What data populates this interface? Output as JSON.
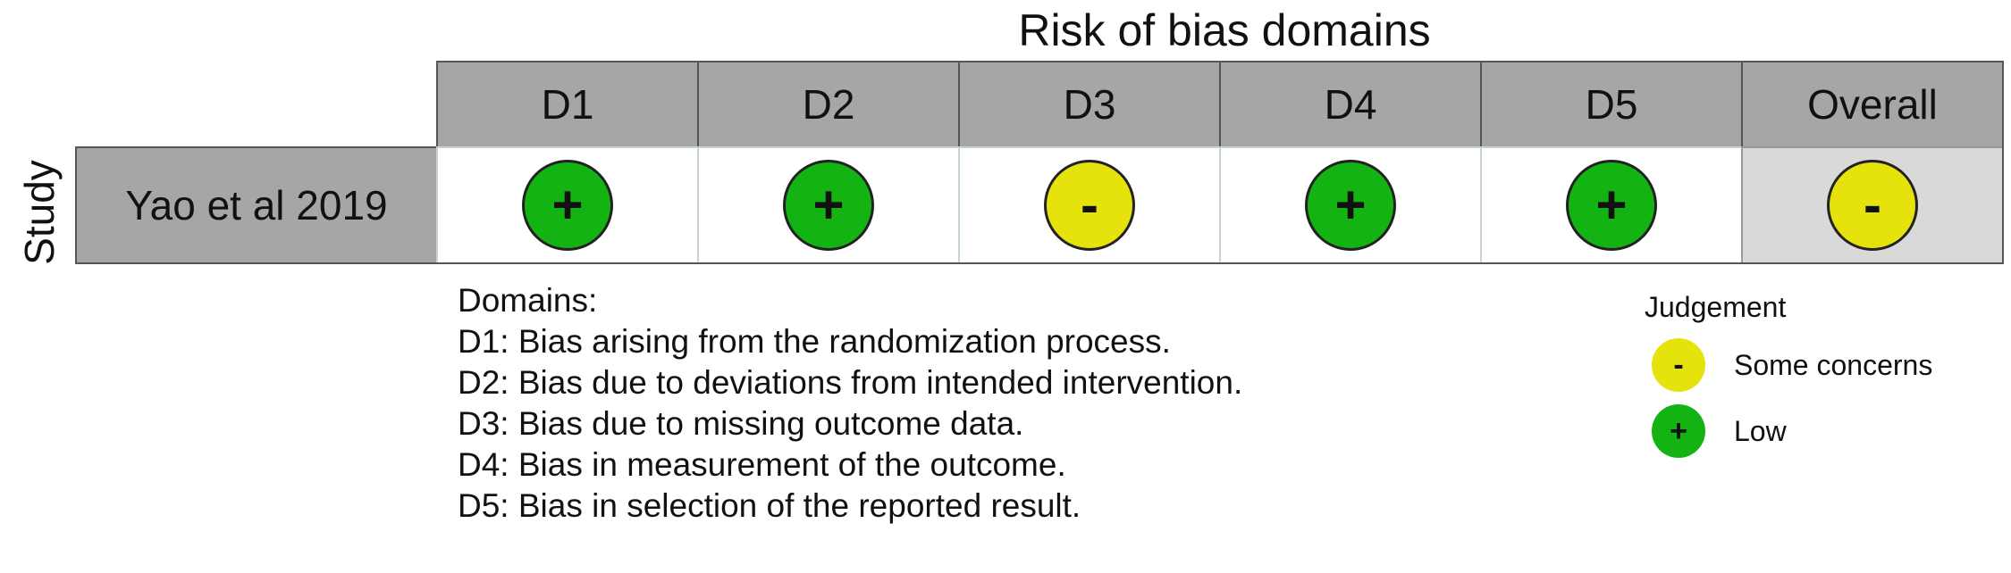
{
  "title": "Risk of bias domains",
  "y_axis_label": "Study",
  "columns": [
    "D1",
    "D2",
    "D3",
    "D4",
    "D5",
    "Overall"
  ],
  "rows": [
    {
      "study": "Yao et al 2019",
      "judgements": [
        {
          "level": "low",
          "symbol": "+"
        },
        {
          "level": "low",
          "symbol": "+"
        },
        {
          "level": "some",
          "symbol": "-"
        },
        {
          "level": "low",
          "symbol": "+"
        },
        {
          "level": "low",
          "symbol": "+"
        },
        {
          "level": "some",
          "symbol": "-"
        }
      ]
    }
  ],
  "domains_legend": {
    "heading": "Domains:",
    "items": [
      "D1: Bias arising from the randomization process.",
      "D2: Bias due to deviations from intended intervention.",
      "D3: Bias due to missing outcome data.",
      "D4: Bias in measurement of the outcome.",
      "D5: Bias in selection of the reported result."
    ]
  },
  "judgement_legend": {
    "title": "Judgement",
    "items": [
      {
        "symbol": "-",
        "label": "Some concerns",
        "level": "some"
      },
      {
        "symbol": "+",
        "label": "Low",
        "level": "low"
      }
    ]
  },
  "colors": {
    "low": "#12b312",
    "some_concerns": "#e5e20c",
    "header_fill": "#a6a6a6",
    "overall_fill": "#d9d9d9"
  }
}
